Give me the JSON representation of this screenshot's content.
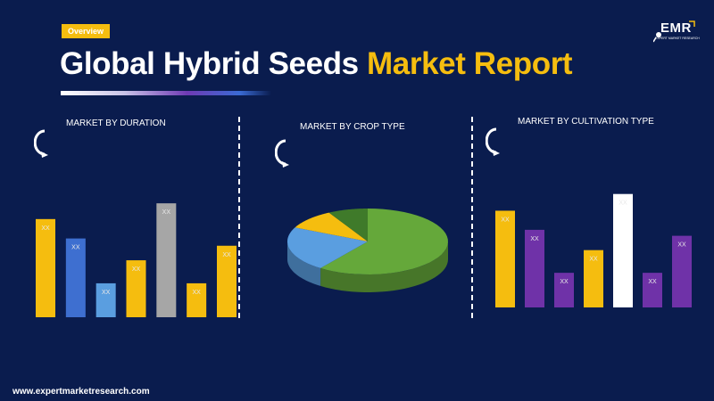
{
  "header": {
    "badge": "Overview",
    "title_main": "Global Hybrid Seeds ",
    "title_highlight": "Market Report"
  },
  "logo": {
    "text": "EMR",
    "subtext": "EXPERT MARKET RESEARCH"
  },
  "footer": {
    "url": "www.expertmarketresearch.com"
  },
  "colors": {
    "background": "#0a1c4e",
    "accent": "#f5bd0f",
    "purple": "#6f32a8",
    "blue": "#3e6fd0",
    "light_blue": "#5a9ee0",
    "gray": "#a6a6a6",
    "green": "#65a83a"
  },
  "chart_data": [
    {
      "type": "bar",
      "title": "MARKET BY DURATION",
      "categories": [
        "",
        "",
        "",
        "",
        "",
        "",
        ""
      ],
      "values": [
        0.81,
        0.65,
        0.28,
        0.47,
        0.94,
        0.28,
        0.59
      ],
      "labels": [
        "XX",
        "XX",
        "XX",
        "XX",
        "XX",
        "XX",
        "XX"
      ],
      "colors": [
        "#f5bd0f",
        "#3e6fd0",
        "#5a9ee0",
        "#f5bd0f",
        "#a6a6a6",
        "#f5bd0f",
        "#f5bd0f"
      ],
      "ylim": [
        0,
        1
      ],
      "grid": false
    },
    {
      "type": "pie",
      "title": "MARKET BY CROP TYPE",
      "slices": [
        {
          "value": 60,
          "color": "#65a83a"
        },
        {
          "value": 22,
          "color": "#5a9ee0"
        },
        {
          "value": 10,
          "color": "#f5bd0f"
        },
        {
          "value": 8,
          "color": "#3f7a2a"
        }
      ]
    },
    {
      "type": "bar",
      "title": "MARKET BY CULTIVATION TYPE",
      "categories": [
        "",
        "",
        "",
        "",
        "",
        "",
        ""
      ],
      "values": [
        0.81,
        0.65,
        0.29,
        0.48,
        0.95,
        0.29,
        0.6
      ],
      "labels": [
        "XX",
        "XX",
        "XX",
        "XX",
        "XX",
        "XX",
        "XX"
      ],
      "colors": [
        "#f5bd0f",
        "#6f32a8",
        "#6f32a8",
        "#f5bd0f",
        "#ffffff",
        "#6f32a8",
        "#6f32a8"
      ],
      "ylim": [
        0,
        1
      ],
      "grid": false
    }
  ]
}
